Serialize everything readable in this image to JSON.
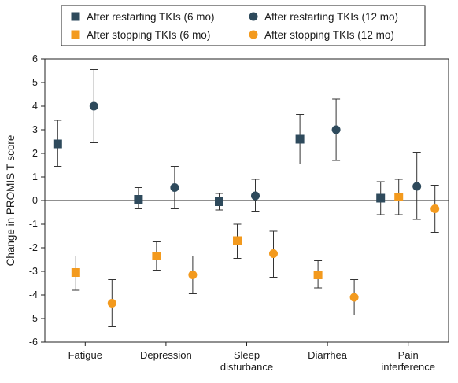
{
  "chart_data": {
    "type": "scatter",
    "ylabel": "Change in PROMIS T score",
    "xlabel": "",
    "title": "",
    "ylim": [
      -6,
      6
    ],
    "yticks": [
      -6,
      -5,
      -4,
      -3,
      -2,
      -1,
      0,
      1,
      2,
      3,
      4,
      5,
      6
    ],
    "grid": false,
    "legend_position": "top",
    "categories": [
      [
        "Fatigue"
      ],
      [
        "Depression"
      ],
      [
        "Sleep",
        "disturbance"
      ],
      [
        "Diarrhea"
      ],
      [
        "Pain",
        "interference"
      ]
    ],
    "series": [
      {
        "name": "After restarting TKIs (6 mo)",
        "marker": "square",
        "color": "#2e4a5c",
        "values": [
          2.4,
          0.05,
          -0.05,
          2.6,
          0.1
        ],
        "lower": [
          1.45,
          -0.35,
          -0.4,
          1.55,
          -0.6
        ],
        "upper": [
          3.4,
          0.55,
          0.3,
          3.65,
          0.8
        ]
      },
      {
        "name": "After stopping TKIs (6 mo)",
        "marker": "square",
        "color": "#f39a1e",
        "values": [
          -3.05,
          -2.35,
          -1.7,
          -3.15,
          0.15
        ],
        "lower": [
          -3.8,
          -2.95,
          -2.45,
          -3.7,
          -0.6
        ],
        "upper": [
          -2.35,
          -1.75,
          -1.0,
          -2.55,
          0.9
        ]
      },
      {
        "name": "After restarting TKIs (12 mo)",
        "marker": "circle",
        "color": "#2e4a5c",
        "values": [
          4.0,
          0.55,
          0.2,
          3.0,
          0.6
        ],
        "lower": [
          2.45,
          -0.35,
          -0.45,
          1.7,
          -0.8
        ],
        "upper": [
          5.55,
          1.45,
          0.9,
          4.3,
          2.05
        ]
      },
      {
        "name": "After stopping TKIs (12 mo)",
        "marker": "circle",
        "color": "#f39a1e",
        "values": [
          -4.35,
          -3.15,
          -2.25,
          -4.1,
          -0.35
        ],
        "lower": [
          -5.35,
          -3.95,
          -3.25,
          -4.85,
          -1.35
        ],
        "upper": [
          -3.35,
          -2.35,
          -1.3,
          -3.35,
          0.65
        ]
      }
    ]
  }
}
